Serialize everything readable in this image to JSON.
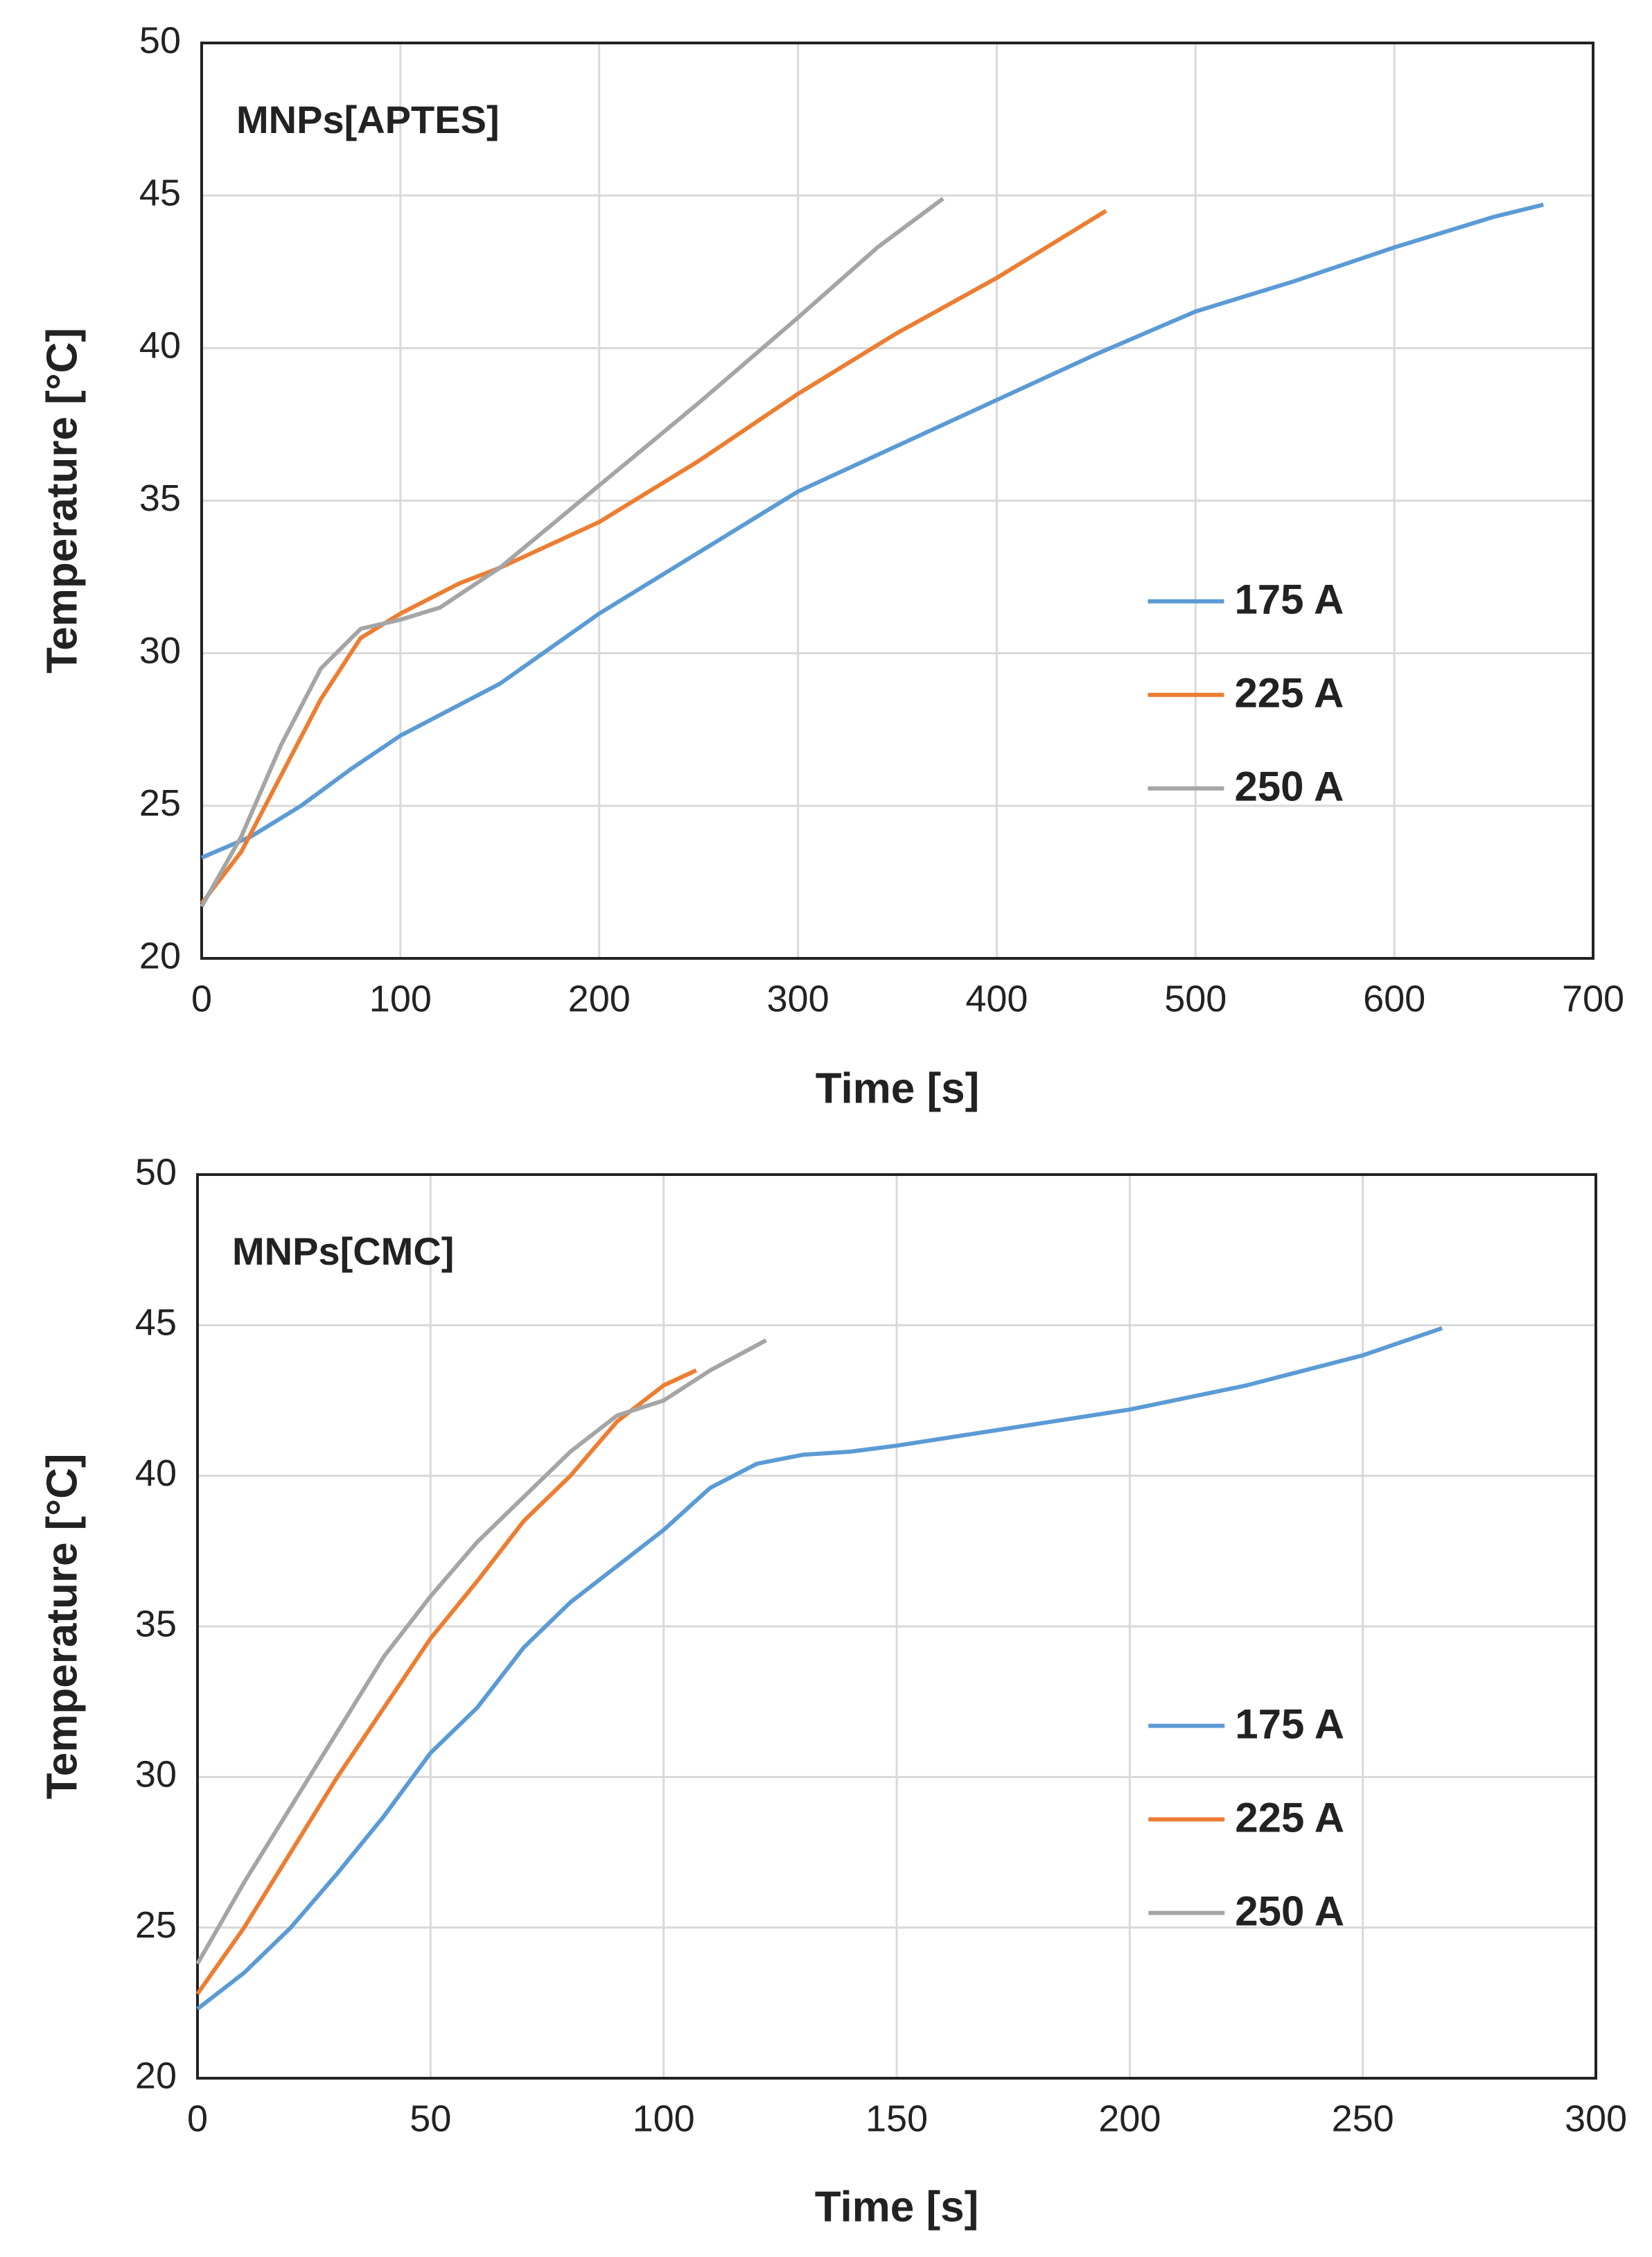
{
  "chart_data": [
    {
      "type": "line",
      "annotation": "MNPs[APTES]",
      "x_label": "Time [s]",
      "y_label": "Temperature [°C]",
      "xlim": [
        0,
        700
      ],
      "xticks": [
        0,
        100,
        200,
        300,
        400,
        500,
        600,
        700
      ],
      "ylim": [
        20,
        50
      ],
      "yticks": [
        20,
        25,
        30,
        35,
        40,
        45,
        50
      ],
      "grid": true,
      "legend": "right",
      "series": [
        {
          "name": "175 A",
          "color": "#5b9bd5",
          "x": [
            0,
            25,
            50,
            75,
            100,
            150,
            200,
            250,
            300,
            350,
            400,
            450,
            500,
            550,
            600,
            650,
            675
          ],
          "values": [
            23.3,
            24,
            25,
            26.2,
            27.3,
            29,
            31.3,
            33.3,
            35.3,
            36.8,
            38.3,
            39.8,
            41.2,
            42.2,
            43.3,
            44.3,
            44.7
          ]
        },
        {
          "name": "225 A",
          "color": "#ed7d31",
          "x": [
            0,
            20,
            40,
            60,
            80,
            100,
            130,
            150,
            200,
            250,
            300,
            350,
            400,
            455
          ],
          "values": [
            21.8,
            23.5,
            26,
            28.5,
            30.5,
            31.3,
            32.3,
            32.8,
            34.3,
            36.3,
            38.5,
            40.5,
            42.3,
            44.5
          ]
        },
        {
          "name": "250 A",
          "color": "#a5a5a5",
          "x": [
            0,
            20,
            40,
            60,
            80,
            100,
            120,
            150,
            200,
            250,
            300,
            340,
            373
          ],
          "values": [
            21.7,
            24,
            27,
            29.5,
            30.8,
            31.1,
            31.5,
            32.8,
            35.5,
            38.2,
            41,
            43.3,
            44.9
          ]
        }
      ]
    },
    {
      "type": "line",
      "annotation": "MNPs[CMC]",
      "x_label": "Time [s]",
      "y_label": "Temperature [°C]",
      "xlim": [
        0,
        300
      ],
      "xticks": [
        0,
        50,
        100,
        150,
        200,
        250,
        300
      ],
      "ylim": [
        20,
        50
      ],
      "yticks": [
        20,
        25,
        30,
        35,
        40,
        45,
        50
      ],
      "grid": true,
      "legend": "right",
      "series": [
        {
          "name": "175 A",
          "color": "#5b9bd5",
          "x": [
            0,
            10,
            20,
            30,
            40,
            50,
            60,
            70,
            80,
            90,
            100,
            110,
            120,
            130,
            140,
            150,
            175,
            200,
            225,
            250,
            267
          ],
          "values": [
            22.3,
            23.5,
            25,
            26.8,
            28.7,
            30.8,
            32.3,
            34.3,
            35.8,
            37,
            38.2,
            39.6,
            40.4,
            40.7,
            40.8,
            41,
            41.6,
            42.2,
            43,
            44,
            44.9
          ]
        },
        {
          "name": "225 A",
          "color": "#ed7d31",
          "x": [
            0,
            10,
            20,
            30,
            40,
            50,
            60,
            70,
            80,
            90,
            100,
            107
          ],
          "values": [
            22.8,
            25,
            27.5,
            30,
            32.3,
            34.6,
            36.5,
            38.5,
            40,
            41.8,
            43,
            43.5
          ]
        },
        {
          "name": "250 A",
          "color": "#a5a5a5",
          "x": [
            0,
            10,
            20,
            30,
            40,
            50,
            60,
            70,
            80,
            90,
            100,
            110,
            122
          ],
          "values": [
            23.8,
            26.5,
            29,
            31.5,
            34,
            36,
            37.8,
            39.3,
            40.8,
            42,
            42.5,
            43.5,
            44.5
          ]
        }
      ]
    }
  ]
}
